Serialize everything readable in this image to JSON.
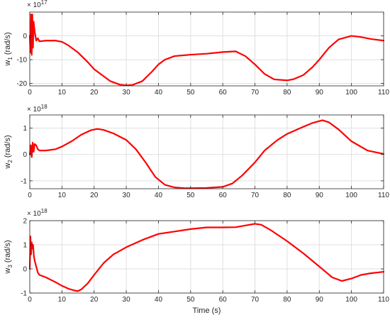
{
  "chart_data": [
    {
      "type": "line",
      "xlabel": "",
      "ylabel": "w",
      "ylabel_sub": "1",
      "ylabel_unit": "(rad/s)",
      "exponent_base": "× 10",
      "exponent": "17",
      "xlim": [
        0,
        110
      ],
      "ylim": [
        -21,
        10
      ],
      "xticks": [
        0,
        10,
        20,
        30,
        40,
        50,
        60,
        70,
        80,
        90,
        100,
        110
      ],
      "yticks": [
        -20,
        -10,
        0
      ],
      "grid": true,
      "color": "#ff0000",
      "series": [
        {
          "x": [
            0,
            0.2,
            0.4,
            0.6,
            0.8,
            1.0,
            1.2,
            1.5,
            2.0,
            2.5,
            3,
            5,
            8,
            10,
            12,
            15,
            18,
            20,
            23,
            25,
            28,
            30,
            32,
            35,
            38,
            40,
            42,
            45,
            50,
            55,
            60,
            64,
            67,
            70,
            73,
            76,
            80,
            82,
            85,
            88,
            90,
            93,
            96,
            100,
            103,
            106,
            110
          ],
          "y": [
            0,
            -7,
            9,
            -8,
            9,
            -5,
            6,
            2,
            -2,
            -1,
            -2.3,
            -2,
            -2,
            -2.5,
            -4,
            -7,
            -11,
            -14,
            -17,
            -19,
            -20.5,
            -20.8,
            -20.6,
            -19,
            -15,
            -12,
            -10,
            -8.5,
            -7.9,
            -7.5,
            -6.8,
            -6.5,
            -8.5,
            -12,
            -16,
            -18.3,
            -18.7,
            -18.2,
            -16.5,
            -13,
            -10,
            -5,
            -1.5,
            0,
            -0.5,
            -1.3,
            -2
          ]
        }
      ]
    },
    {
      "type": "line",
      "xlabel": "",
      "ylabel": "w",
      "ylabel_sub": "2",
      "ylabel_unit": "(rad/s)",
      "exponent_base": "× 10",
      "exponent": "18",
      "xlim": [
        0,
        110
      ],
      "ylim": [
        -1.3,
        1.5
      ],
      "xticks": [
        0,
        10,
        20,
        30,
        40,
        50,
        60,
        70,
        80,
        90,
        100,
        110
      ],
      "yticks": [
        -1,
        0,
        1
      ],
      "grid": true,
      "color": "#ff0000",
      "series": [
        {
          "x": [
            0,
            0.3,
            0.6,
            0.9,
            1.2,
            1.5,
            2.0,
            2.5,
            3,
            5,
            8,
            10,
            13,
            16,
            19,
            21,
            23,
            26,
            30,
            33,
            36,
            39,
            42,
            45,
            48,
            50,
            55,
            60,
            63,
            66,
            70,
            73,
            77,
            80,
            85,
            88,
            91,
            93,
            96,
            100,
            105,
            110
          ],
          "y": [
            0,
            0.35,
            -0.1,
            0.45,
            0.1,
            0.4,
            0.35,
            0.2,
            0.15,
            0.15,
            0.2,
            0.3,
            0.5,
            0.75,
            0.92,
            0.97,
            0.93,
            0.8,
            0.55,
            0.2,
            -0.3,
            -0.85,
            -1.15,
            -1.25,
            -1.28,
            -1.28,
            -1.27,
            -1.23,
            -1.1,
            -0.8,
            -0.3,
            0.15,
            0.55,
            0.78,
            1.05,
            1.2,
            1.3,
            1.22,
            0.95,
            0.5,
            0.15,
            0.02
          ]
        }
      ]
    },
    {
      "type": "line",
      "xlabel": "Time (s)",
      "ylabel": "w",
      "ylabel_sub": "3",
      "ylabel_unit": "(rad/s)",
      "exponent_base": "× 10",
      "exponent": "18",
      "xlim": [
        0,
        110
      ],
      "ylim": [
        -1,
        2
      ],
      "xticks": [
        0,
        10,
        20,
        30,
        40,
        50,
        60,
        70,
        80,
        90,
        100,
        110
      ],
      "yticks": [
        -1,
        0,
        1,
        2
      ],
      "grid": true,
      "color": "#ff0000",
      "series": [
        {
          "x": [
            0,
            0.2,
            0.4,
            0.6,
            0.8,
            1.0,
            1.3,
            1.6,
            2.0,
            2.5,
            3,
            5,
            8,
            10,
            12,
            14,
            15,
            16,
            18,
            20,
            23,
            26,
            30,
            35,
            40,
            45,
            50,
            55,
            60,
            64,
            67,
            70,
            72,
            75,
            80,
            85,
            90,
            94,
            97,
            100,
            103,
            106,
            110
          ],
          "y": [
            0,
            1.35,
            0.6,
            1.1,
            0.85,
            1.0,
            0.5,
            0.3,
            0.1,
            -0.15,
            -0.25,
            -0.35,
            -0.55,
            -0.7,
            -0.82,
            -0.9,
            -0.92,
            -0.85,
            -0.6,
            -0.25,
            0.25,
            0.6,
            0.9,
            1.2,
            1.45,
            1.55,
            1.65,
            1.72,
            1.72,
            1.73,
            1.8,
            1.87,
            1.83,
            1.6,
            1.15,
            0.65,
            0.1,
            -0.35,
            -0.5,
            -0.4,
            -0.25,
            -0.18,
            -0.12
          ]
        }
      ]
    }
  ]
}
